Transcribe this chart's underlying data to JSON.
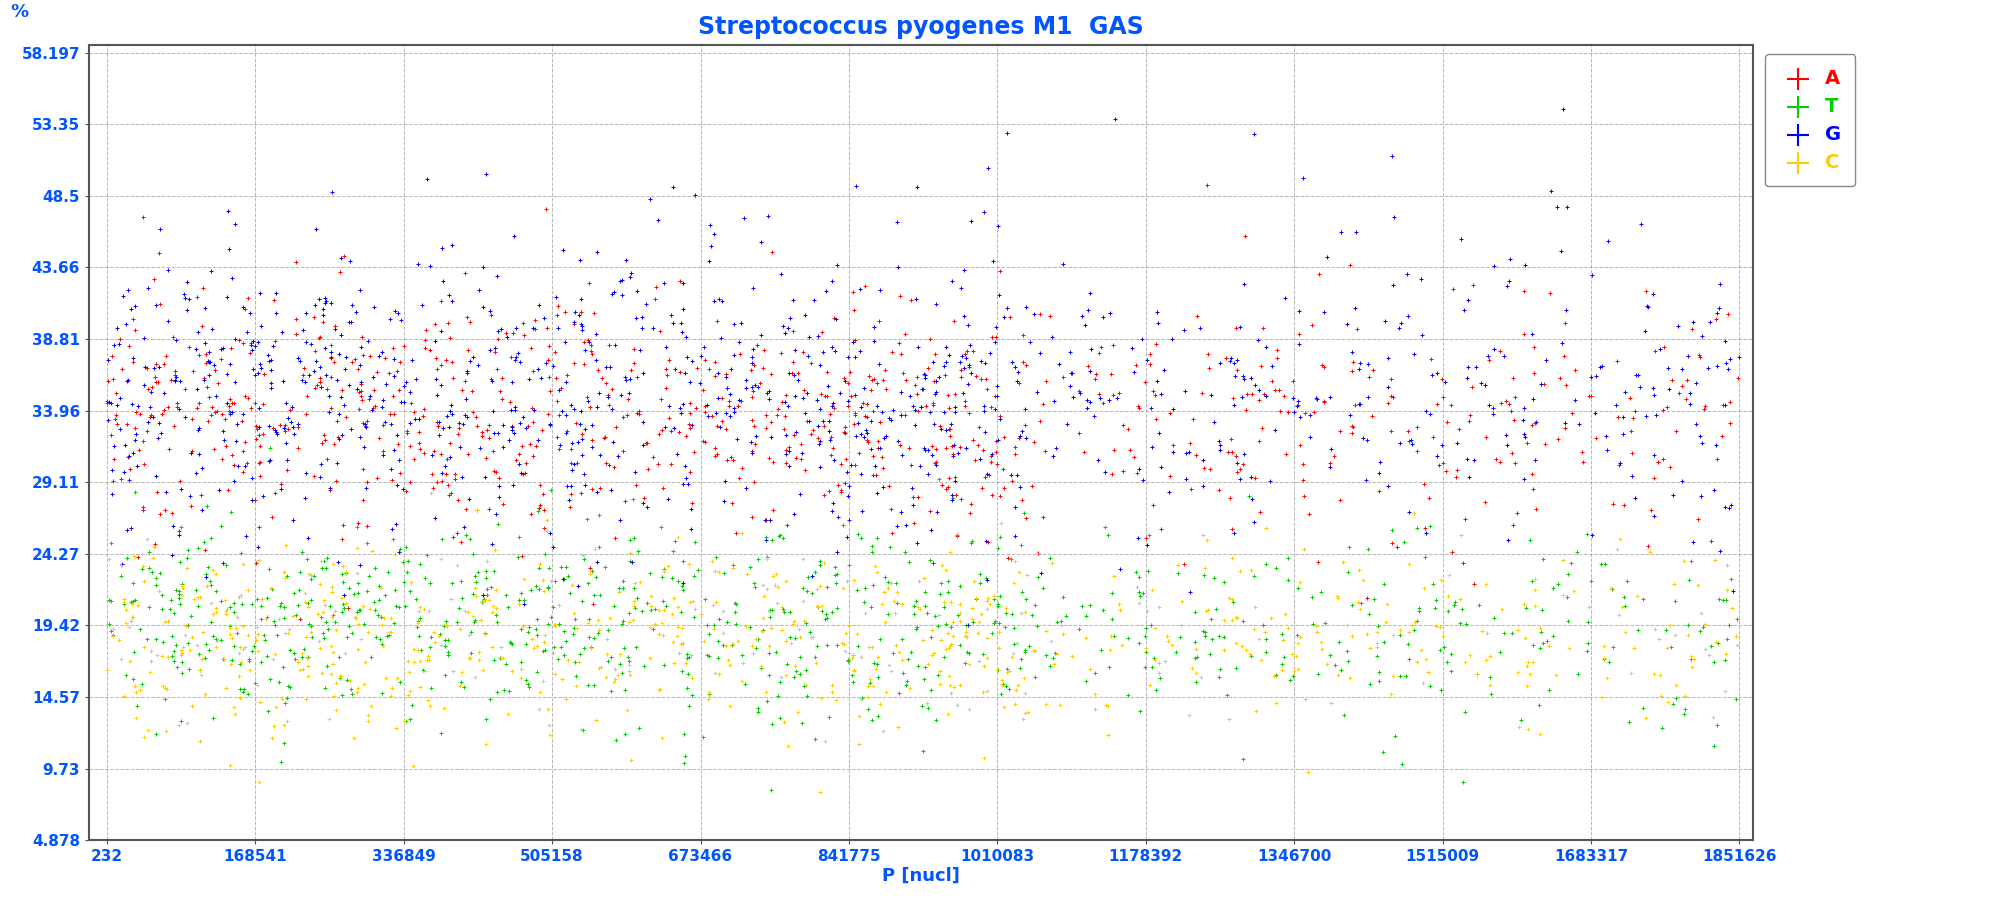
{
  "title": "Streptococcus pyogenes M1  GAS",
  "xlabel": "P [nucl]",
  "ylabel": "%",
  "x_min": 232,
  "x_max": 1851626,
  "y_min": 4.878,
  "y_max": 58.197,
  "yticks": [
    4.878,
    9.73,
    14.57,
    19.42,
    24.27,
    29.11,
    33.96,
    38.81,
    43.66,
    48.5,
    53.35,
    58.197
  ],
  "xticks": [
    232,
    168541,
    336849,
    505158,
    673466,
    841775,
    1010083,
    1178392,
    1346700,
    1515009,
    1683317,
    1851626
  ],
  "colors": {
    "A": "#ff0000",
    "T": "#00cc00",
    "G": "#0000ff",
    "C": "#ffcc00"
  },
  "background_color": "#ffffff",
  "axis_color": "#808080",
  "grid_color": "#888888",
  "label_color": "#0055ff",
  "title_color": "#0055ff",
  "legend_nucleotides": [
    "A",
    "T",
    "G",
    "C"
  ]
}
